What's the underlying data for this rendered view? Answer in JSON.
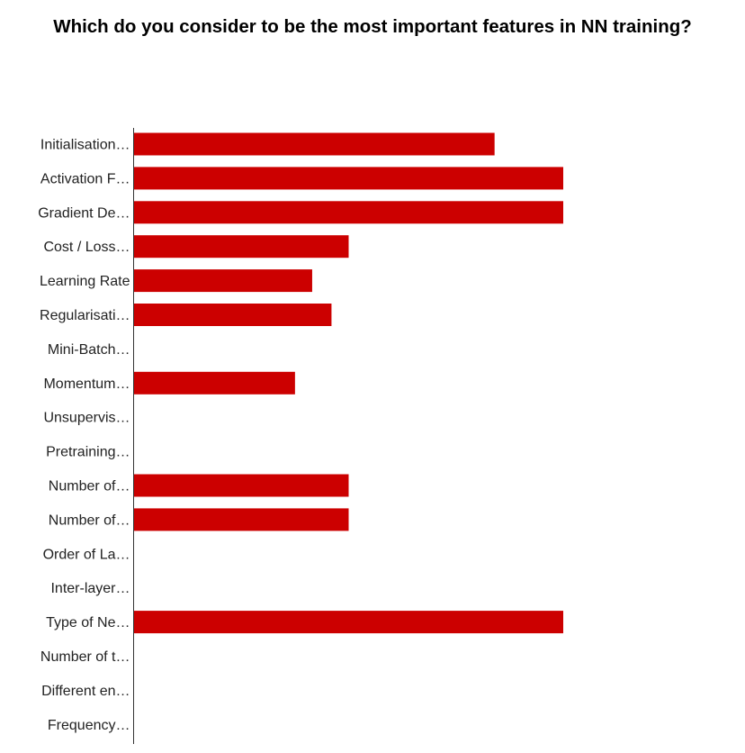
{
  "chart_data": {
    "type": "bar",
    "orientation": "horizontal",
    "title": "Which do you consider to be the most important features in NN training?",
    "xlabel": "",
    "ylabel": "",
    "categories": [
      "Initialisation…",
      "Activation F…",
      "Gradient De…",
      "Cost / Loss…",
      "Learning Rate",
      "Regularisati…",
      "Mini-Batch…",
      "Momentum…",
      "Unsupervis…",
      "Pretraining…",
      "Number of…",
      "Number of…",
      "Order of La…",
      "Inter-layer…",
      "Type of Ne…",
      "Number of t…",
      "Different en…",
      "Frequency…"
    ],
    "values": [
      84,
      100,
      100,
      50,
      41.5,
      46,
      0,
      37.5,
      0,
      0,
      50,
      50,
      0,
      0,
      100,
      0,
      0,
      0
    ],
    "xlim": [
      0,
      100
    ],
    "grid": false,
    "legend": "none",
    "bar_color": "#cc0000",
    "axis_color": "#333333"
  }
}
